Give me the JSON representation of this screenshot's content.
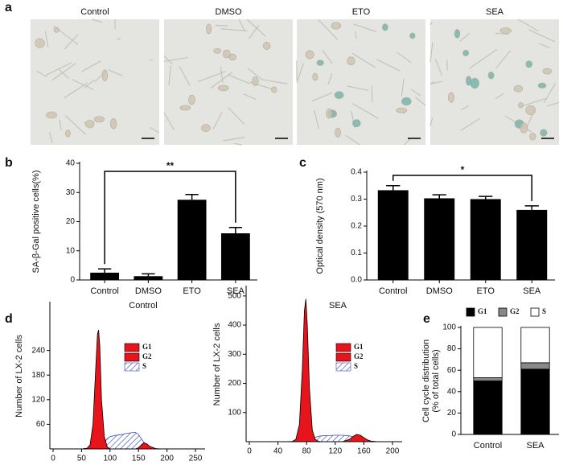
{
  "image_panel": {
    "panel": "a",
    "labels": [
      "Control",
      "DMSO",
      "ETO",
      "SEA"
    ]
  },
  "chart_data": [
    {
      "panel": "b",
      "type": "bar",
      "categories": [
        "Control",
        "DMSO",
        "ETO",
        "SEA"
      ],
      "values": [
        2.5,
        1.3,
        27.5,
        16
      ],
      "errors": [
        1.3,
        0.8,
        1.8,
        2
      ],
      "color": "#000000",
      "ylim": [
        0,
        40
      ],
      "yticks": [
        0,
        10,
        20,
        30,
        40
      ],
      "ylabel": "SA-β-Gal positive cells(%)",
      "annotation": "**"
    },
    {
      "panel": "c",
      "type": "bar",
      "categories": [
        "Control",
        "DMSO",
        "ETO",
        "SEA"
      ],
      "values": [
        0.333,
        0.303,
        0.3,
        0.26
      ],
      "errors": [
        0.017,
        0.013,
        0.01,
        0.015
      ],
      "color": "#000000",
      "ylim": [
        0,
        0.4
      ],
      "yticks": [
        {
          "value": 0,
          "label": "0.0"
        },
        0.1,
        0.2,
        0.3,
        0.4
      ],
      "ylabel": "Optical density (570 nm)",
      "annotation": "*"
    },
    {
      "panel": "d",
      "type": "area",
      "title": "Control",
      "x": [
        0,
        10,
        20,
        30,
        40,
        50,
        60,
        65,
        70,
        75,
        78,
        80,
        82,
        85,
        90,
        95,
        100,
        110,
        120,
        130,
        140,
        145,
        150,
        155,
        160,
        165,
        170,
        180,
        190,
        200,
        220,
        250
      ],
      "series": [
        {
          "name": "G1",
          "color": "#e8141b",
          "values": [
            0,
            0,
            0,
            0,
            0,
            0,
            2,
            10,
            60,
            200,
            280,
            290,
            250,
            120,
            30,
            5,
            0,
            0,
            0,
            0,
            0,
            0,
            0,
            0,
            0,
            0,
            0,
            0,
            0,
            0,
            0,
            0
          ]
        },
        {
          "name": "G2",
          "color": "#e8141b",
          "values": [
            0,
            0,
            0,
            0,
            0,
            0,
            0,
            0,
            0,
            0,
            0,
            0,
            0,
            0,
            0,
            0,
            0,
            0,
            0,
            0,
            0,
            0,
            3,
            10,
            15,
            12,
            6,
            1,
            0,
            0,
            0,
            0
          ]
        },
        {
          "name": "S",
          "color": "#3b4fb0",
          "values": [
            0,
            0,
            0,
            0,
            0,
            0,
            0,
            0,
            0,
            0,
            0,
            0,
            0,
            5,
            15,
            25,
            30,
            33,
            35,
            38,
            40,
            40,
            35,
            25,
            15,
            5,
            0,
            0,
            0,
            0,
            0,
            0
          ]
        }
      ],
      "xlim": [
        0,
        250
      ],
      "xticks": [
        0,
        50,
        100,
        150,
        200,
        250
      ],
      "ylim": [
        0,
        355
      ],
      "yticks": [
        60,
        120,
        180,
        240
      ],
      "ylabel": "Number of LX-2 cells"
    },
    {
      "type": "area",
      "title": "SEA",
      "x": [
        0,
        10,
        20,
        30,
        40,
        50,
        60,
        65,
        70,
        74,
        77,
        79,
        81,
        84,
        88,
        92,
        96,
        100,
        110,
        120,
        130,
        140,
        145,
        150,
        155,
        160,
        165,
        170,
        180,
        200
      ],
      "series": [
        {
          "name": "G1",
          "color": "#e8141b",
          "values": [
            0,
            0,
            0,
            0,
            0,
            0,
            1,
            8,
            60,
            250,
            450,
            490,
            400,
            180,
            40,
            8,
            2,
            0,
            0,
            0,
            0,
            0,
            0,
            0,
            0,
            0,
            0,
            0,
            0,
            0
          ]
        },
        {
          "name": "G2",
          "color": "#e8141b",
          "values": [
            0,
            0,
            0,
            0,
            0,
            0,
            0,
            0,
            0,
            0,
            0,
            0,
            0,
            0,
            0,
            0,
            0,
            0,
            0,
            0,
            0,
            8,
            18,
            25,
            22,
            14,
            6,
            2,
            0,
            0
          ]
        },
        {
          "name": "S",
          "color": "#3b4fb0",
          "values": [
            0,
            0,
            0,
            0,
            0,
            0,
            0,
            0,
            0,
            0,
            0,
            0,
            0,
            4,
            10,
            15,
            18,
            20,
            21,
            22,
            22,
            20,
            16,
            10,
            5,
            2,
            0,
            0,
            0,
            0
          ]
        }
      ],
      "xlim": [
        0,
        200
      ],
      "xticks": [
        0,
        40,
        80,
        120,
        160,
        200
      ],
      "ylim": [
        0,
        530
      ],
      "yticks": [
        100,
        200,
        300,
        400,
        500
      ],
      "ylabel": "Number of LX-2 cells"
    },
    {
      "panel": "e",
      "type": "stacked_bar",
      "categories": [
        "Control",
        "SEA"
      ],
      "series": [
        {
          "name": "G1",
          "color": "#000000",
          "values": [
            50,
            61
          ]
        },
        {
          "name": "G2",
          "color": "#888888",
          "values": [
            3,
            6
          ]
        },
        {
          "name": "S",
          "color": "#ffffff",
          "values": [
            47,
            33
          ]
        }
      ],
      "ylim": [
        0,
        100
      ],
      "yticks": [
        0,
        20,
        40,
        60,
        80,
        100
      ],
      "ylabel": [
        "Cell cycle distribution",
        "(% of total cells)"
      ]
    }
  ]
}
